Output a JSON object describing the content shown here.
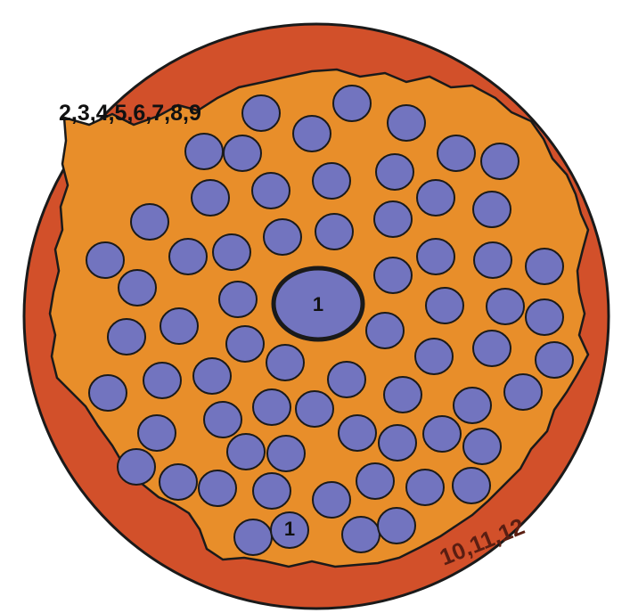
{
  "diagram": {
    "labels": {
      "top_left": "2,3,4,5,6,7,8,9",
      "bottom_right": "10,11,12",
      "center": "1",
      "bottom_small": "1"
    },
    "colors": {
      "outer_disc": "#d2502a",
      "inner_region": "#e88e2a",
      "particle_fill": "#7274bf",
      "stroke": "#1a1a1a",
      "text": "#111111",
      "label_bottom": "#5a1e12"
    }
  }
}
